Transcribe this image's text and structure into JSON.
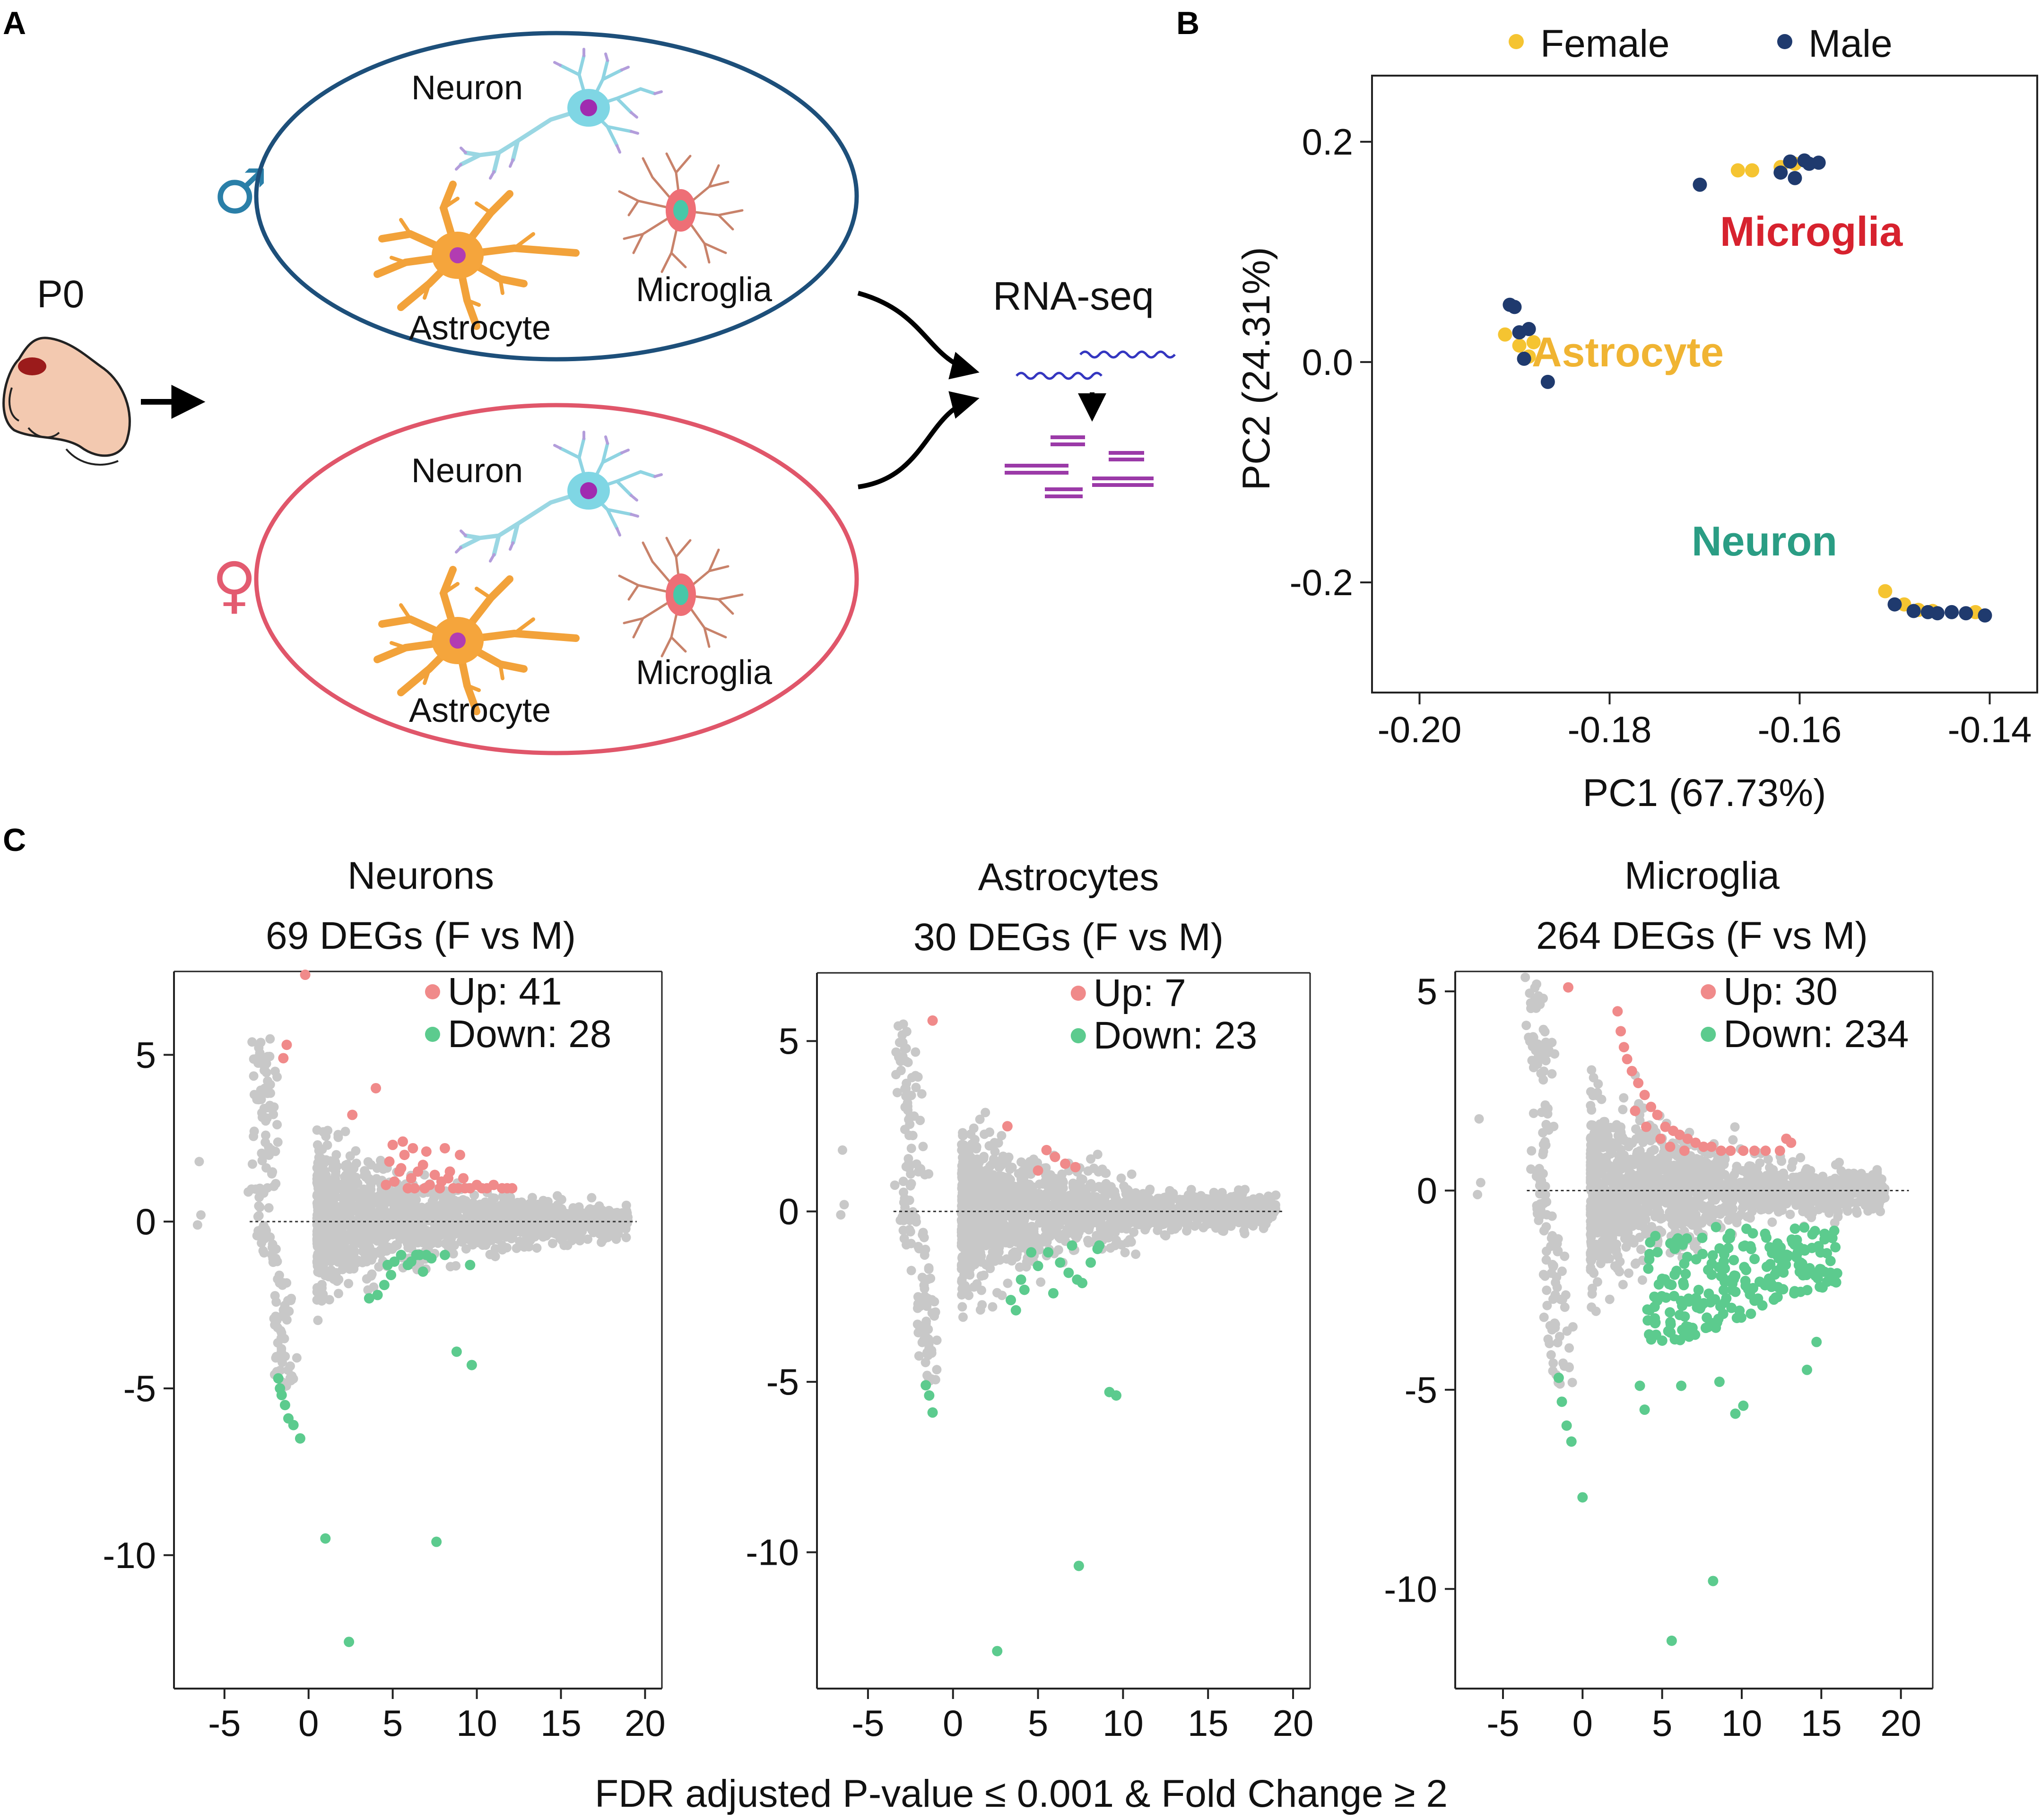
{
  "panels": {
    "a": "A",
    "b": "B",
    "c": "C"
  },
  "schematic": {
    "age": "P0",
    "male_symbol": "♂",
    "female_symbol": "♀",
    "male_cells": {
      "neuron": "Neuron",
      "astrocyte": "Astrocyte",
      "microglia": "Microglia"
    },
    "female_cells": {
      "neuron": "Neuron",
      "astrocyte": "Astrocyte",
      "microglia": "Microglia"
    },
    "method": "RNA-seq"
  },
  "colors": {
    "male_ellipse": "#1d4f7a",
    "female_ellipse": "#e0566a",
    "female_point": "#f5c431",
    "male_point": "#1f3a6e",
    "microglia_label": "#d7222e",
    "astrocyte_label": "#f0b432",
    "neuron_label": "#2a9d84",
    "up_point": "#f08a8a",
    "down_point": "#5ccb8e",
    "ns_point": "#c8c8c8"
  },
  "chart_data": [
    {
      "type": "scatter",
      "id": "pca",
      "title": "",
      "xlabel": "PC1 (67.73%)",
      "ylabel": "PC2 (24.31%)",
      "xlim": [
        -0.205,
        -0.135
      ],
      "ylim": [
        -0.3,
        0.26
      ],
      "xticks": [
        -0.2,
        -0.18,
        -0.16,
        -0.14
      ],
      "xtick_labels": [
        "-0.20",
        "-0.18",
        "-0.16",
        "-0.14"
      ],
      "yticks": [
        0.2,
        0.0,
        -0.2
      ],
      "ytick_labels": [
        "0.2",
        "0.0",
        "-0.2"
      ],
      "legend": [
        "Female",
        "Male"
      ],
      "cluster_labels": [
        "Microglia",
        "Astrocyte",
        "Neuron"
      ],
      "series": [
        {
          "name": "Female",
          "points": [
            [
              -0.1665,
              0.174
            ],
            [
              -0.165,
              0.174
            ],
            [
              -0.162,
              0.177
            ],
            [
              -0.1605,
              0.18
            ],
            [
              -0.191,
              0.025
            ],
            [
              -0.1895,
              0.015
            ],
            [
              -0.188,
              0.018
            ],
            [
              -0.1885,
              0.005
            ],
            [
              -0.151,
              -0.208
            ],
            [
              -0.149,
              -0.22
            ],
            [
              -0.1475,
              -0.225
            ],
            [
              -0.146,
              -0.226
            ],
            [
              -0.1415,
              -0.227
            ]
          ]
        },
        {
          "name": "Male",
          "points": [
            [
              -0.1705,
              0.161
            ],
            [
              -0.162,
              0.172
            ],
            [
              -0.161,
              0.182
            ],
            [
              -0.1605,
              0.167
            ],
            [
              -0.1595,
              0.183
            ],
            [
              -0.159,
              0.18
            ],
            [
              -0.158,
              0.181
            ],
            [
              -0.1905,
              0.052
            ],
            [
              -0.19,
              0.05
            ],
            [
              -0.1895,
              0.027
            ],
            [
              -0.1885,
              0.03
            ],
            [
              -0.189,
              0.003
            ],
            [
              -0.1865,
              -0.018
            ],
            [
              -0.15,
              -0.22
            ],
            [
              -0.148,
              -0.226
            ],
            [
              -0.1465,
              -0.227
            ],
            [
              -0.1455,
              -0.228
            ],
            [
              -0.144,
              -0.227
            ],
            [
              -0.1425,
              -0.228
            ],
            [
              -0.1405,
              -0.23
            ]
          ]
        }
      ]
    },
    {
      "type": "scatter",
      "id": "neurons",
      "title": "Neurons",
      "subtitle": "69 DEGs (F vs M)",
      "xlim": [
        -8,
        21
      ],
      "ylim": [
        -14,
        7.5
      ],
      "xticks": [
        -5,
        0,
        5,
        10,
        15,
        20
      ],
      "xtick_labels": [
        "-5",
        "0",
        "5",
        "10",
        "15",
        "20"
      ],
      "yticks": [
        5,
        0,
        -5,
        -10
      ],
      "ytick_labels": [
        "5",
        "0",
        "-5",
        "-10"
      ],
      "up_label": "Up: 41",
      "down_label": "Down: 28",
      "up_points": [
        [
          -0.2,
          7.4
        ],
        [
          -1.3,
          5.3
        ],
        [
          -1.5,
          4.9
        ],
        [
          4,
          4.0
        ],
        [
          2.6,
          3.2
        ],
        [
          5,
          2.3
        ],
        [
          5.6,
          2.4
        ],
        [
          6.2,
          2.2
        ],
        [
          7,
          2.1
        ],
        [
          8.1,
          2.2
        ],
        [
          9,
          2.0
        ],
        [
          5.5,
          1.6
        ],
        [
          6.5,
          1.5
        ],
        [
          7.5,
          1.4
        ],
        [
          8.3,
          1.3
        ],
        [
          9.2,
          1.3
        ],
        [
          10,
          1.1
        ],
        [
          11,
          1.1
        ],
        [
          12.1,
          1.0
        ],
        [
          6.1,
          1.3
        ],
        [
          7.2,
          1.1
        ],
        [
          8.6,
          1.0
        ],
        [
          9.6,
          1.0
        ],
        [
          5.1,
          1.2
        ],
        [
          5.9,
          1.0
        ],
        [
          6.9,
          1.0
        ],
        [
          7.8,
          1.0
        ],
        [
          8.9,
          1.0
        ],
        [
          4.6,
          1.1
        ],
        [
          10.6,
          1.0
        ],
        [
          11.5,
          1.0
        ],
        [
          5.4,
          1.5
        ],
        [
          6.8,
          1.7
        ],
        [
          7.9,
          1.2
        ],
        [
          9.3,
          1.0
        ],
        [
          10.3,
          1.0
        ],
        [
          6.3,
          1.0
        ],
        [
          4.8,
          1.8
        ],
        [
          5.7,
          2.0
        ],
        [
          8.4,
          1.5
        ],
        [
          11.8,
          1.0
        ]
      ],
      "down_points": [
        [
          -1.8,
          -4.7
        ],
        [
          -1.7,
          -5.0
        ],
        [
          -1.6,
          -5.2
        ],
        [
          -1.4,
          -5.5
        ],
        [
          -1.2,
          -5.9
        ],
        [
          -0.9,
          -6.1
        ],
        [
          -0.5,
          -6.5
        ],
        [
          5.5,
          -1.0
        ],
        [
          6.4,
          -1.0
        ],
        [
          7.3,
          -1.1
        ],
        [
          8.1,
          -1.0
        ],
        [
          9.6,
          -1.3
        ],
        [
          5.9,
          -1.3
        ],
        [
          6.8,
          -1.5
        ],
        [
          4.9,
          -1.6
        ],
        [
          4.1,
          -2.2
        ],
        [
          3.6,
          -2.3
        ],
        [
          4.5,
          -1.9
        ],
        [
          5.1,
          -1.2
        ],
        [
          6.1,
          -1.2
        ],
        [
          7.0,
          -1.0
        ],
        [
          8.8,
          -3.9
        ],
        [
          9.7,
          -4.3
        ],
        [
          7.6,
          -9.6
        ],
        [
          1.0,
          -9.5
        ],
        [
          2.4,
          -12.6
        ],
        [
          6.6,
          -1.0
        ],
        [
          4.7,
          -1.3
        ]
      ]
    },
    {
      "type": "scatter",
      "id": "astrocytes",
      "title": "Astrocytes",
      "subtitle": "30 DEGs (F vs M)",
      "xlim": [
        -8,
        21
      ],
      "ylim": [
        -14,
        7
      ],
      "xticks": [
        -5,
        0,
        5,
        10,
        15,
        20
      ],
      "xtick_labels": [
        "-5",
        "0",
        "5",
        "10",
        "15",
        "20"
      ],
      "yticks": [
        5,
        0,
        -5,
        -10
      ],
      "ytick_labels": [
        "5",
        "0",
        "-5",
        "-10"
      ],
      "up_label": "Up: 7",
      "down_label": "Down: 23",
      "up_points": [
        [
          -1.2,
          5.6
        ],
        [
          3.2,
          2.5
        ],
        [
          5.5,
          1.8
        ],
        [
          6.0,
          1.6
        ],
        [
          6.6,
          1.4
        ],
        [
          5.0,
          1.2
        ],
        [
          7.2,
          1.3
        ]
      ],
      "down_points": [
        [
          -1.6,
          -5.1
        ],
        [
          -1.4,
          -5.4
        ],
        [
          -1.2,
          -5.9
        ],
        [
          3.4,
          -2.6
        ],
        [
          3.7,
          -2.9
        ],
        [
          4.2,
          -2.3
        ],
        [
          5.0,
          -1.6
        ],
        [
          5.6,
          -1.2
        ],
        [
          6.3,
          -1.5
        ],
        [
          7.0,
          -1.0
        ],
        [
          7.6,
          -2.1
        ],
        [
          8.1,
          -1.5
        ],
        [
          4.6,
          -1.2
        ],
        [
          5.9,
          -2.4
        ],
        [
          6.8,
          -1.8
        ],
        [
          8.6,
          -1.0
        ],
        [
          9.2,
          -5.3
        ],
        [
          9.6,
          -5.4
        ],
        [
          7.4,
          -10.4
        ],
        [
          2.6,
          -12.9
        ],
        [
          7.3,
          -2.0
        ],
        [
          8.5,
          -1.1
        ],
        [
          4.0,
          -2.0
        ]
      ]
    },
    {
      "type": "scatter",
      "id": "microglia",
      "title": "Microglia",
      "subtitle": "264 DEGs (F vs M)",
      "xlim": [
        -8,
        22
      ],
      "ylim": [
        -12.5,
        5.5
      ],
      "xticks": [
        -5,
        0,
        5,
        10,
        15,
        20
      ],
      "xtick_labels": [
        "-5",
        "0",
        "5",
        "10",
        "15",
        "20"
      ],
      "yticks": [
        5,
        0,
        -5,
        -10
      ],
      "ytick_labels": [
        "5",
        "0",
        "-5",
        "-10"
      ],
      "up_label": "Up: 30",
      "down_label": "Down: 234",
      "down_count": 234,
      "down_cloud": {
        "x": [
          4,
          16
        ],
        "y": [
          -4.1,
          -0.9
        ],
        "outliers": [
          [
            -1.5,
            -4.7
          ],
          [
            -1.3,
            -5.3
          ],
          [
            -1.0,
            -5.9
          ],
          [
            -0.7,
            -6.3
          ],
          [
            0.0,
            -7.7
          ],
          [
            3.6,
            -4.9
          ],
          [
            3.9,
            -5.5
          ],
          [
            6.2,
            -4.9
          ],
          [
            8.6,
            -4.8
          ],
          [
            9.6,
            -5.6
          ],
          [
            10.1,
            -5.4
          ],
          [
            14.1,
            -4.5
          ],
          [
            14.7,
            -3.8
          ],
          [
            8.2,
            -9.8
          ],
          [
            5.6,
            -11.3
          ]
        ]
      },
      "up_points": [
        [
          -0.9,
          5.1
        ],
        [
          2.2,
          4.5
        ],
        [
          2.4,
          4.0
        ],
        [
          2.6,
          3.6
        ],
        [
          2.8,
          3.3
        ],
        [
          3.1,
          3.0
        ],
        [
          3.5,
          2.7
        ],
        [
          3.9,
          2.4
        ],
        [
          4.3,
          2.1
        ],
        [
          4.7,
          1.9
        ],
        [
          5.2,
          1.6
        ],
        [
          5.7,
          1.5
        ],
        [
          6.1,
          1.4
        ],
        [
          6.6,
          1.3
        ],
        [
          7.1,
          1.2
        ],
        [
          7.6,
          1.1
        ],
        [
          8.1,
          1.1
        ],
        [
          8.7,
          1.0
        ],
        [
          9.3,
          1.0
        ],
        [
          10.1,
          1.0
        ],
        [
          10.8,
          1.0
        ],
        [
          11.5,
          1.0
        ],
        [
          12.4,
          1.0
        ],
        [
          13.1,
          1.2
        ],
        [
          3.3,
          2.0
        ],
        [
          4.0,
          1.6
        ],
        [
          4.9,
          1.3
        ],
        [
          5.5,
          1.1
        ],
        [
          6.4,
          1.0
        ],
        [
          12.8,
          1.3
        ]
      ]
    }
  ],
  "footer": "FDR adjusted P-value ≤ 0.001 & Fold Change ≥ 2"
}
